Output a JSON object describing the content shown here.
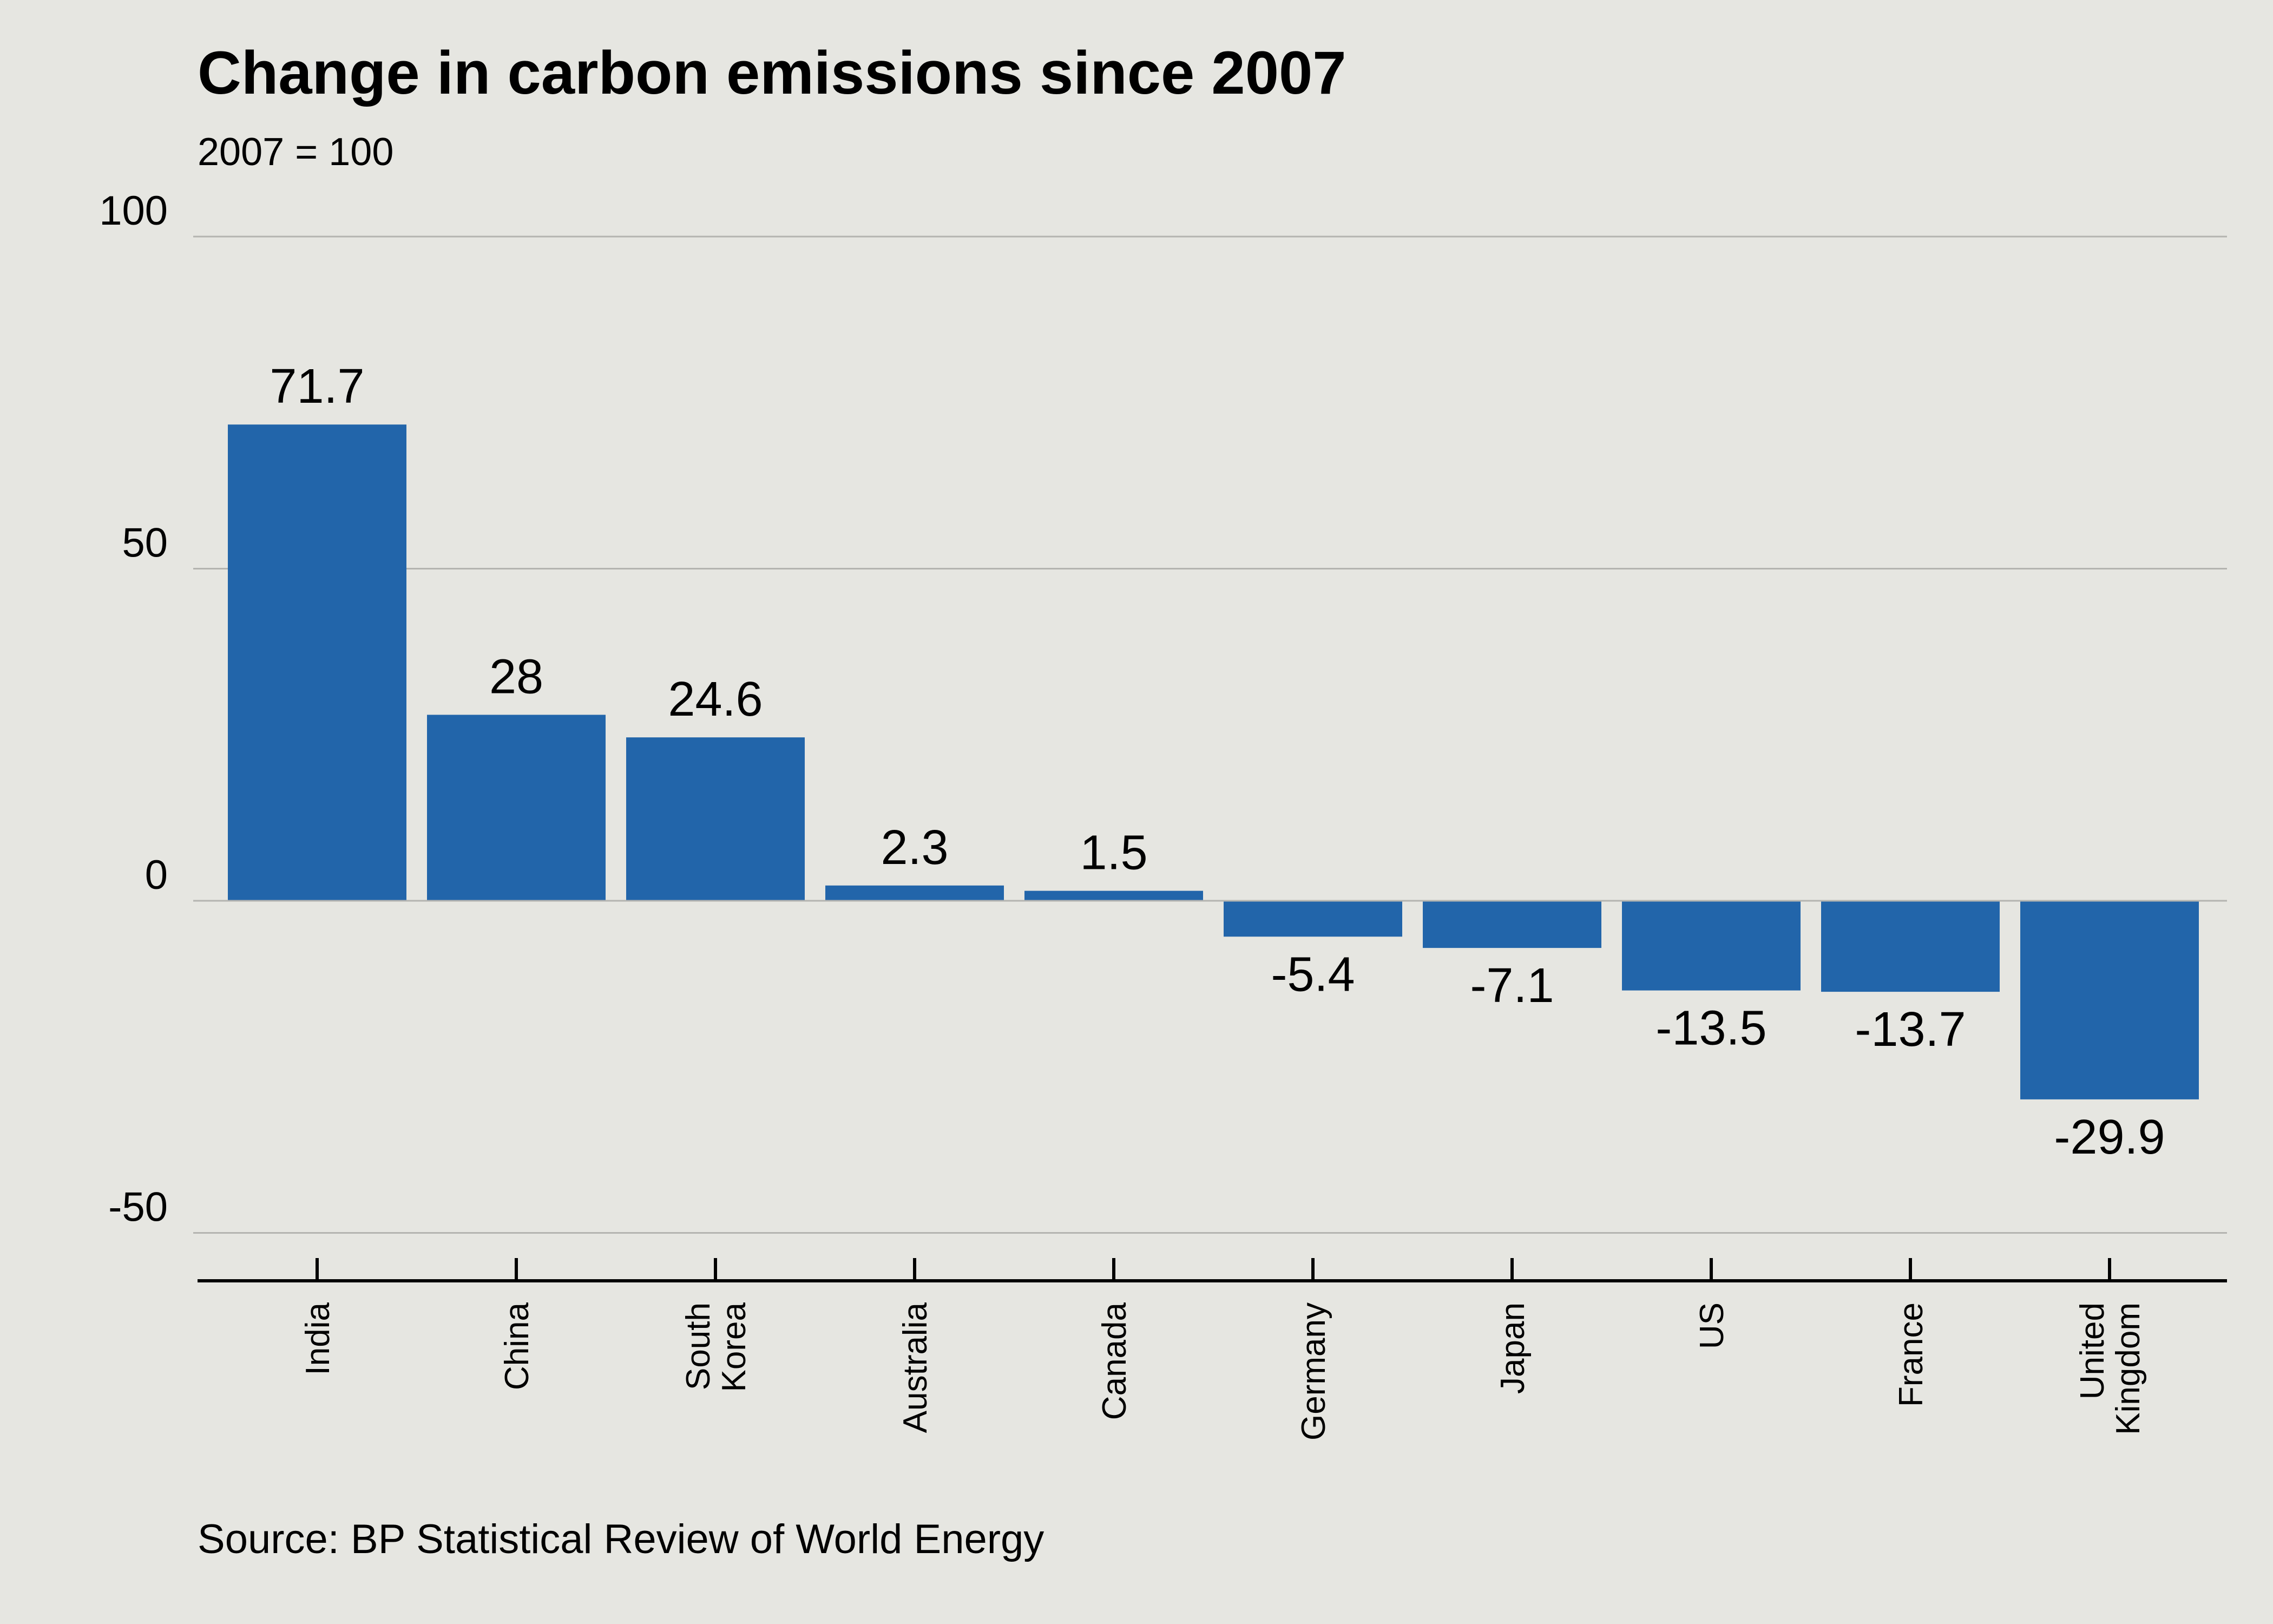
{
  "chart_data": {
    "type": "bar",
    "title": "Change in carbon emissions since 2007",
    "subtitle": "2007 = 100",
    "source": "Source: BP Statistical Review of World Energy",
    "xlabel": "",
    "ylabel": "",
    "categories": [
      [
        "India"
      ],
      [
        "China"
      ],
      [
        "South",
        "Korea"
      ],
      [
        "Australia"
      ],
      [
        "Canada"
      ],
      [
        "Germany"
      ],
      [
        "Japan"
      ],
      [
        "US"
      ],
      [
        "France"
      ],
      [
        "United",
        "Kingdom"
      ]
    ],
    "values": [
      71.7,
      28,
      24.6,
      2.3,
      1.5,
      -5.4,
      -7.1,
      -13.5,
      -13.7,
      -29.9
    ],
    "data_labels": [
      "71.7",
      "28",
      "24.6",
      "2.3",
      "1.5",
      "-5.4",
      "-7.1",
      "-13.5",
      "-13.7",
      "-29.9"
    ],
    "yticks": [
      100,
      50,
      0,
      -50
    ],
    "ytick_labels": [
      "100",
      "50",
      "0",
      "-50"
    ],
    "ylim": [
      -57,
      100
    ],
    "grid": true,
    "bar_color": "#2265aa",
    "background_color": "#e6e6e1",
    "grid_color": "#b4b4b0"
  }
}
